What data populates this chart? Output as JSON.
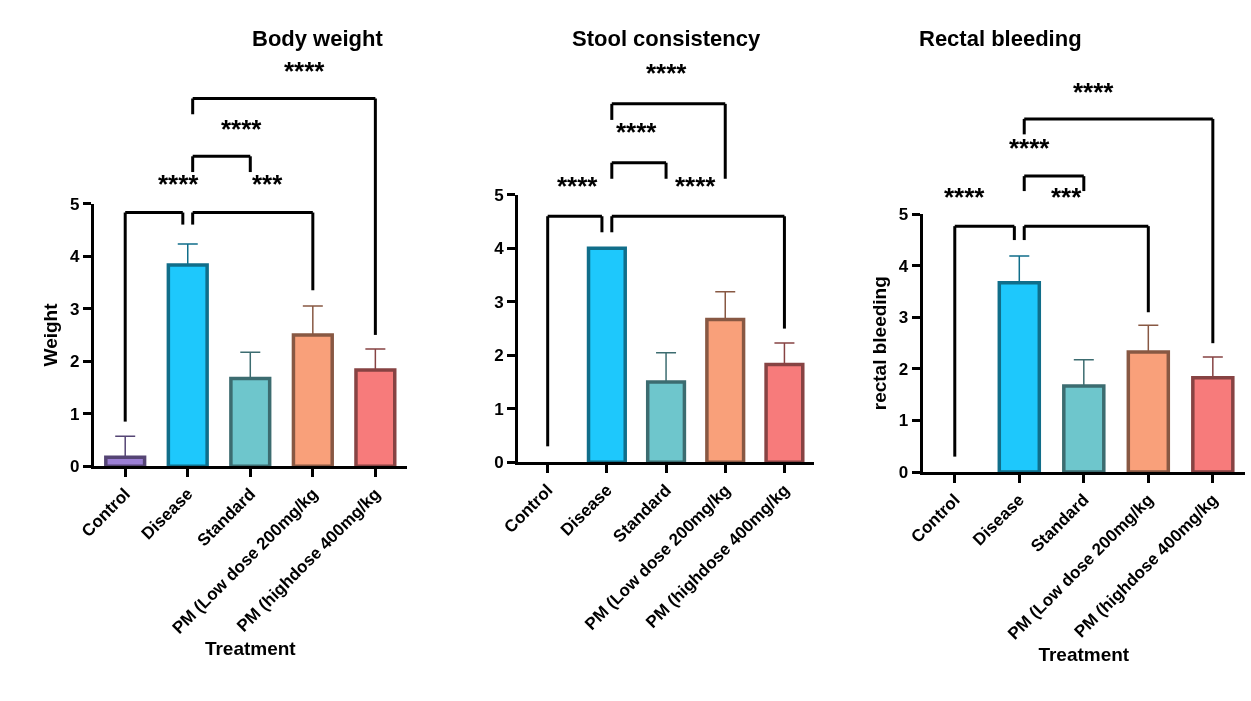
{
  "chart_data": [
    {
      "type": "bar",
      "title": "Body weight",
      "xlabel": "Treatment",
      "ylabel": "Weight",
      "categories": [
        "Control",
        "Disease",
        "Standard",
        "PM (Low dose 200mg/kg",
        "PM (highdose 400mg/kg"
      ],
      "values": [
        0.17,
        3.83,
        1.67,
        2.5,
        1.83
      ],
      "colors": [
        "#9b7fd4",
        "#1ec8fc",
        "#6ec6cc",
        "#f9a07a",
        "#f77b7b"
      ],
      "errors": [
        [
          0.17,
          0.57
        ],
        [
          3.83,
          4.23
        ],
        [
          1.67,
          2.17
        ],
        [
          2.5,
          3.05
        ],
        [
          1.83,
          2.23
        ]
      ],
      "ylim": [
        0,
        5
      ],
      "yticks": [
        0,
        1,
        2,
        3,
        4,
        5
      ],
      "annotations": [
        "****",
        "***",
        "****",
        "****"
      ]
    },
    {
      "type": "bar",
      "title": "Stool consistency",
      "categories": [
        "Control",
        "Disease",
        "Standard",
        "PM (Low dose 200mg/kg",
        "PM (highdose 400mg/kg"
      ],
      "values": [
        0,
        4,
        1.5,
        2.67,
        1.83
      ],
      "colors": [
        "#9b7fd4",
        "#1ec8fc",
        "#6ec6cc",
        "#f9a07a",
        "#f77b7b"
      ],
      "errors": [
        null,
        null,
        [
          1.5,
          2.05
        ],
        [
          2.67,
          3.19
        ],
        [
          1.83,
          2.23
        ]
      ],
      "ylim": [
        0,
        5
      ],
      "yticks": [
        0,
        1,
        2,
        3,
        4,
        5
      ],
      "annotations": [
        "****",
        "****",
        "****",
        "****"
      ]
    },
    {
      "type": "bar",
      "title": "Rectal bleeding",
      "xlabel": "Treatment",
      "ylabel": "rectal bleeding",
      "categories": [
        "Control",
        "Disease",
        "Standard",
        "PM (Low dose 200mg/kg",
        "PM (highdose 400mg/kg"
      ],
      "values": [
        0,
        3.67,
        1.67,
        2.33,
        1.83
      ],
      "colors": [
        "#9b7fd4",
        "#1ec8fc",
        "#6ec6cc",
        "#f9a07a",
        "#f77b7b"
      ],
      "errors": [
        null,
        [
          3.67,
          4.19
        ],
        [
          1.67,
          2.18
        ],
        [
          2.33,
          2.85
        ],
        [
          1.83,
          2.23
        ]
      ],
      "ylim": [
        0,
        5
      ],
      "yticks": [
        0,
        1,
        2,
        3,
        4,
        5
      ],
      "annotations": [
        "****",
        "***",
        "****",
        "****"
      ]
    }
  ]
}
